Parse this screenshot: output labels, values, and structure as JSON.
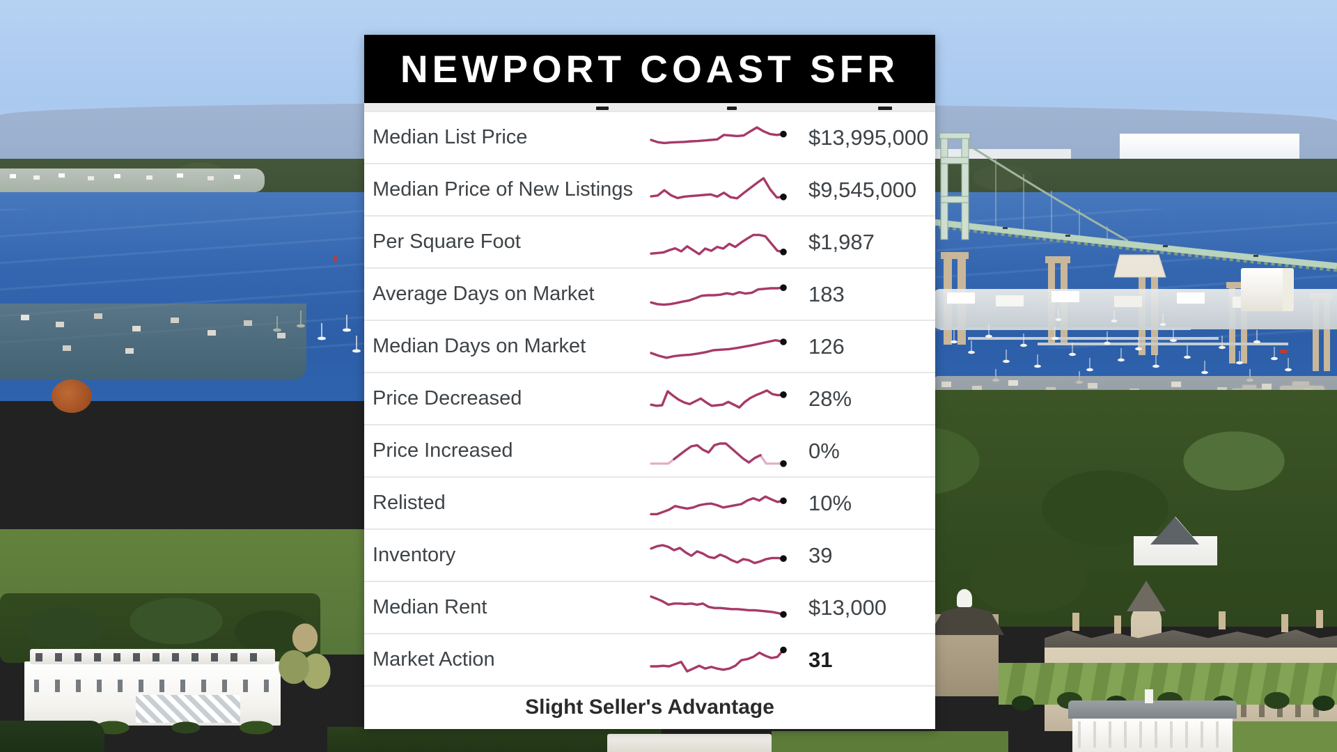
{
  "header": {
    "title": "NEWPORT COAST SFR"
  },
  "footer": {
    "market_status": "Slight Seller's Advantage"
  },
  "colors": {
    "header_bg": "#000000",
    "header_text": "#ffffff",
    "card_bg": "#ffffff",
    "divider": "#e7e7e7",
    "label_text": "#3e4347",
    "value_text": "#3e4347",
    "sparkline": "#a63a68",
    "sparkline_muted": "#dfaec6",
    "dot": "#0e0e0e",
    "footer_text": "#2b2b2b",
    "partial_strip": "#ececec"
  },
  "chart_data": [
    {
      "type": "line",
      "label": "Median List Price",
      "value": "$13,995,000",
      "trend_relative": [
        45,
        37,
        34,
        36,
        37,
        38,
        40,
        41,
        43,
        45,
        47,
        63,
        61,
        59,
        61,
        76,
        90,
        76,
        66,
        63,
        66
      ]
    },
    {
      "type": "line",
      "label": "Median Price of New Listings",
      "value": "$9,545,000",
      "trend_relative": [
        30,
        33,
        52,
        34,
        24,
        29,
        31,
        33,
        35,
        37,
        29,
        43,
        27,
        23,
        42,
        60,
        78,
        95,
        55,
        26,
        28
      ]
    },
    {
      "type": "line",
      "label": "Per Square Foot",
      "value": "$1,987",
      "trend_relative": [
        12,
        14,
        16,
        24,
        31,
        20,
        38,
        24,
        10,
        30,
        22,
        36,
        30,
        47,
        36,
        52,
        66,
        79,
        79,
        74,
        48,
        22,
        18
      ]
    },
    {
      "type": "line",
      "label": "Average Days on Market",
      "value": "183",
      "trend_relative": [
        24,
        18,
        16,
        18,
        22,
        27,
        31,
        39,
        48,
        50,
        50,
        52,
        57,
        53,
        61,
        56,
        59,
        71,
        73,
        75,
        75,
        77
      ]
    },
    {
      "type": "line",
      "label": "Median Days on Market",
      "value": "126",
      "trend_relative": [
        30,
        20,
        13,
        19,
        22,
        24,
        28,
        33,
        40,
        42,
        44,
        48,
        53,
        58,
        64,
        70,
        76,
        70
      ]
    },
    {
      "type": "line",
      "label": "Price Decreased",
      "value": "28%",
      "trend_relative": [
        32,
        28,
        30,
        80,
        64,
        50,
        40,
        34,
        44,
        54,
        40,
        28,
        30,
        32,
        42,
        32,
        22,
        42,
        56,
        66,
        74,
        83,
        70,
        66,
        68
      ]
    },
    {
      "type": "line",
      "label": "Price Increased",
      "value": "0%",
      "trend_relative": [
        8,
        8,
        8,
        8,
        24,
        40,
        56,
        70,
        74,
        58,
        48,
        74,
        80,
        80,
        62,
        44,
        26,
        12,
        28,
        38,
        8,
        8,
        8,
        8
      ],
      "muted_prefix": 4,
      "muted_suffix": 4
    },
    {
      "type": "line",
      "label": "Relisted",
      "value": "10%",
      "trend_relative": [
        14,
        14,
        22,
        30,
        43,
        38,
        34,
        38,
        46,
        50,
        52,
        46,
        38,
        42,
        46,
        50,
        63,
        71,
        63,
        77,
        67,
        58,
        62
      ]
    },
    {
      "type": "line",
      "label": "Inventory",
      "value": "39",
      "trend_relative": [
        78,
        86,
        90,
        84,
        72,
        80,
        64,
        52,
        68,
        60,
        48,
        44,
        56,
        48,
        36,
        28,
        40,
        36,
        26,
        32,
        40,
        44,
        44,
        42
      ]
    },
    {
      "type": "line",
      "label": "Median Rent",
      "value": "$13,000",
      "trend_relative": [
        93,
        85,
        76,
        64,
        68,
        68,
        66,
        68,
        64,
        68,
        56,
        52,
        52,
        50,
        48,
        48,
        46,
        44,
        44,
        42,
        40,
        38,
        34,
        29
      ]
    },
    {
      "type": "line",
      "label": "Market Action",
      "value": "31",
      "value_bold": true,
      "trend_relative": [
        30,
        30,
        32,
        30,
        38,
        46,
        12,
        22,
        32,
        22,
        28,
        22,
        18,
        22,
        32,
        52,
        56,
        64,
        79,
        68,
        60,
        64,
        89
      ]
    }
  ]
}
